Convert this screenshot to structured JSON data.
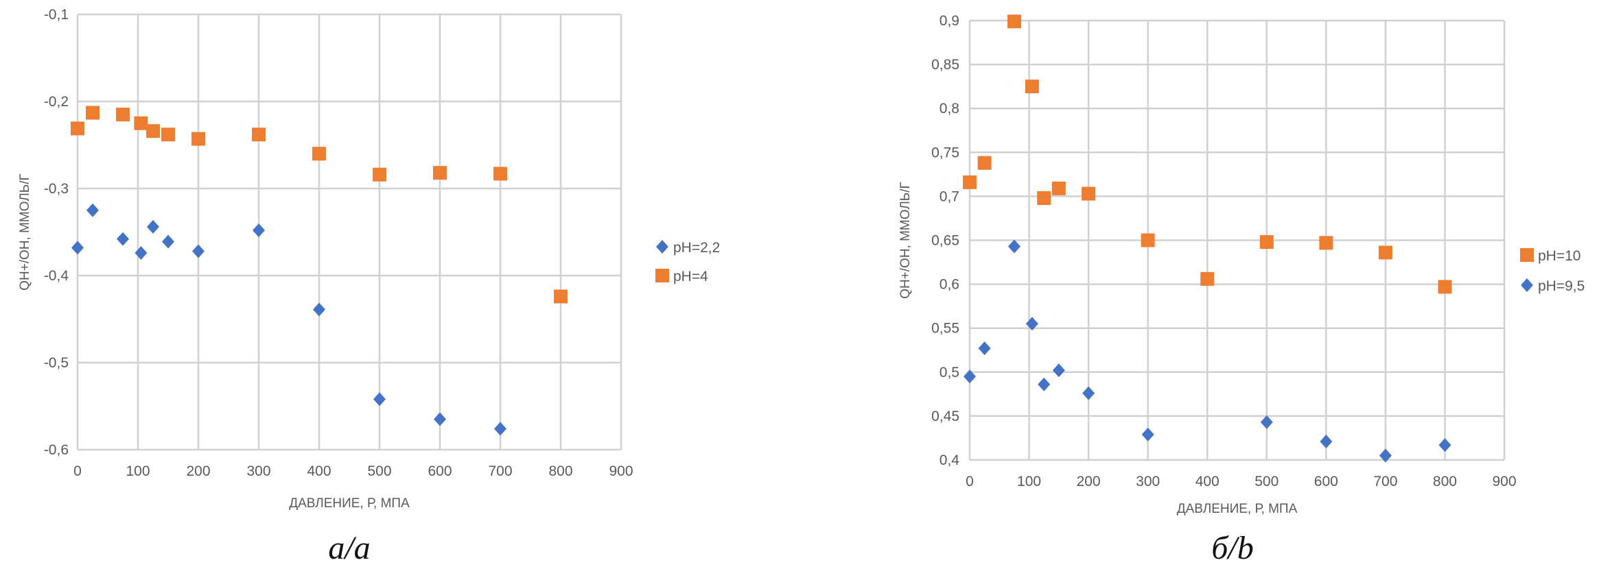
{
  "chart_data": [
    {
      "type": "scatter",
      "caption": "а/а",
      "xlabel": "ДАВЛЕНИЕ, Р, МПА",
      "ylabel": "QН+/ОН, ММОЛЬ/Г",
      "xlim": [
        0,
        900
      ],
      "ylim": [
        -0.6,
        -0.1
      ],
      "xticks": [
        "0",
        "100",
        "200",
        "300",
        "400",
        "500",
        "600",
        "700",
        "800",
        "900"
      ],
      "yticks": [
        "-0,1",
        "-0,2",
        "-0,3",
        "-0,4",
        "-0,5",
        "-0,6"
      ],
      "grid": true,
      "legend_position": "right",
      "series": [
        {
          "name": "pH=2,2",
          "marker": "diamond",
          "color": "#4472C4",
          "x": [
            0,
            25,
            75,
            105,
            125,
            150,
            200,
            300,
            400,
            500,
            600,
            700
          ],
          "y": [
            -0.368,
            -0.325,
            -0.358,
            -0.374,
            -0.344,
            -0.361,
            -0.372,
            -0.348,
            -0.439,
            -0.542,
            -0.565,
            -0.576
          ]
        },
        {
          "name": "pH=4",
          "marker": "square",
          "color": "#ED7D31",
          "x": [
            0,
            25,
            75,
            105,
            125,
            150,
            200,
            300,
            400,
            500,
            600,
            700,
            800
          ],
          "y": [
            -0.231,
            -0.213,
            -0.215,
            -0.225,
            -0.234,
            -0.238,
            -0.243,
            -0.238,
            -0.26,
            -0.284,
            -0.282,
            -0.283,
            -0.424
          ]
        }
      ]
    },
    {
      "type": "scatter",
      "caption": "б/b",
      "xlabel": "ДАВЛЕНИЕ, Р, МПА",
      "ylabel": "QН+/ОН, ММОЛЬ/Г",
      "xlim": [
        0,
        900
      ],
      "ylim": [
        0.4,
        0.9
      ],
      "xticks": [
        "0",
        "100",
        "200",
        "300",
        "400",
        "500",
        "600",
        "700",
        "800",
        "900"
      ],
      "yticks": [
        "0,9",
        "0,85",
        "0,8",
        "0,75",
        "0,7",
        "0,65",
        "0,6",
        "0,55",
        "0,5",
        "0,45",
        "0,4"
      ],
      "grid": true,
      "legend_position": "right",
      "series": [
        {
          "name": "pH=10",
          "marker": "square",
          "color": "#ED7D31",
          "x": [
            0,
            25,
            75,
            105,
            125,
            150,
            200,
            300,
            400,
            500,
            600,
            700,
            800
          ],
          "y": [
            0.716,
            0.738,
            0.899,
            0.825,
            0.698,
            0.709,
            0.703,
            0.65,
            0.606,
            0.648,
            0.647,
            0.636,
            0.597
          ]
        },
        {
          "name": "pH=9,5",
          "marker": "diamond",
          "color": "#4472C4",
          "x": [
            0,
            25,
            75,
            105,
            125,
            150,
            200,
            300,
            500,
            600,
            700,
            800
          ],
          "y": [
            0.495,
            0.527,
            0.643,
            0.555,
            0.486,
            0.502,
            0.476,
            0.429,
            0.443,
            0.421,
            0.405,
            0.417
          ]
        }
      ]
    }
  ]
}
